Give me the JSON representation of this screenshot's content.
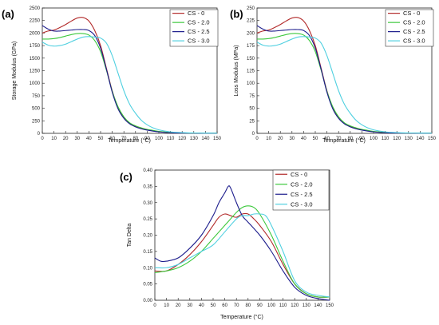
{
  "chart_data": [
    {
      "type": "line",
      "panel_label": "(a)",
      "xlabel": "Temperature (°C)",
      "ylabel": "Storage Modulus (GPa)",
      "xlim": [
        0,
        150
      ],
      "ylim": [
        0,
        2500
      ],
      "xticks": [
        0,
        10,
        20,
        30,
        40,
        50,
        60,
        70,
        80,
        90,
        100,
        110,
        120,
        130,
        140,
        150
      ],
      "yticks": [
        0,
        250,
        500,
        750,
        1000,
        1250,
        1500,
        1750,
        2000,
        2250,
        2500
      ],
      "grid": false,
      "legend": "top-right",
      "series": [
        {
          "name": "CS - 0",
          "color": "#b22a2a",
          "x": [
            0,
            5,
            10,
            15,
            20,
            25,
            30,
            35,
            40,
            45,
            50,
            55,
            60,
            65,
            70,
            75,
            80,
            85,
            90,
            95,
            100,
            110,
            120,
            130,
            140,
            150
          ],
          "y": [
            2000,
            2040,
            2060,
            2110,
            2170,
            2240,
            2300,
            2310,
            2240,
            2050,
            1750,
            1300,
            850,
            520,
            320,
            200,
            140,
            100,
            70,
            50,
            35,
            15,
            8,
            5,
            4,
            3
          ]
        },
        {
          "name": "CS - 2.0",
          "color": "#3cc83c",
          "x": [
            0,
            5,
            10,
            15,
            20,
            25,
            30,
            35,
            40,
            45,
            50,
            55,
            60,
            65,
            70,
            75,
            80,
            85,
            90,
            95,
            100,
            110,
            120,
            130,
            140,
            150
          ],
          "y": [
            1880,
            1880,
            1890,
            1910,
            1940,
            1970,
            1990,
            1990,
            1960,
            1850,
            1630,
            1260,
            840,
            530,
            330,
            210,
            150,
            110,
            80,
            60,
            40,
            18,
            9,
            5,
            4,
            3
          ]
        },
        {
          "name": "CS - 2.5",
          "color": "#1c1c8c",
          "x": [
            0,
            5,
            10,
            15,
            20,
            25,
            30,
            35,
            40,
            45,
            50,
            55,
            60,
            65,
            70,
            75,
            80,
            85,
            90,
            95,
            100,
            110,
            120,
            130,
            140,
            150
          ],
          "y": [
            2150,
            2080,
            2040,
            2040,
            2050,
            2060,
            2070,
            2070,
            2050,
            1950,
            1700,
            1280,
            820,
            490,
            300,
            190,
            130,
            90,
            65,
            45,
            30,
            12,
            6,
            4,
            3,
            2
          ]
        },
        {
          "name": "CS - 3.0",
          "color": "#50d0e0",
          "x": [
            0,
            5,
            10,
            15,
            20,
            25,
            30,
            35,
            40,
            45,
            50,
            55,
            60,
            65,
            70,
            75,
            80,
            85,
            90,
            95,
            100,
            110,
            120,
            130,
            140,
            150
          ],
          "y": [
            1820,
            1760,
            1740,
            1750,
            1780,
            1830,
            1880,
            1920,
            1930,
            1920,
            1900,
            1800,
            1550,
            1200,
            850,
            580,
            400,
            260,
            170,
            110,
            70,
            30,
            15,
            8,
            5,
            4
          ]
        }
      ]
    },
    {
      "type": "line",
      "panel_label": "(b)",
      "xlabel": "Temperature (°C)",
      "ylabel": "Loss Modulus (MPa)",
      "xlim": [
        0,
        150
      ],
      "ylim": [
        0,
        250
      ],
      "xticks": [
        0,
        10,
        20,
        30,
        40,
        50,
        60,
        70,
        80,
        90,
        100,
        110,
        120,
        130,
        140,
        150
      ],
      "yticks": [
        0,
        25,
        50,
        75,
        100,
        125,
        150,
        175,
        200,
        225,
        250
      ],
      "grid": false,
      "legend": "top-right",
      "series": [
        {
          "name": "CS - 0",
          "color": "#b22a2a",
          "x": [
            0,
            5,
            10,
            15,
            20,
            25,
            30,
            35,
            40,
            45,
            50,
            55,
            60,
            65,
            70,
            75,
            80,
            85,
            90,
            95,
            100,
            110,
            120,
            130,
            140,
            150
          ],
          "y": [
            200,
            204,
            206,
            211,
            217,
            224,
            230,
            231,
            224,
            205,
            175,
            130,
            85,
            52,
            32,
            20,
            14,
            10,
            7,
            5,
            3.5,
            1.5,
            0.8,
            0.5,
            0.4,
            0.3
          ]
        },
        {
          "name": "CS - 2.0",
          "color": "#3cc83c",
          "x": [
            0,
            5,
            10,
            15,
            20,
            25,
            30,
            35,
            40,
            45,
            50,
            55,
            60,
            65,
            70,
            75,
            80,
            85,
            90,
            95,
            100,
            110,
            120,
            130,
            140,
            150
          ],
          "y": [
            188,
            188,
            189,
            191,
            194,
            197,
            199,
            199,
            196,
            185,
            163,
            126,
            84,
            53,
            33,
            21,
            15,
            11,
            8,
            6,
            4,
            1.8,
            0.9,
            0.5,
            0.4,
            0.3
          ]
        },
        {
          "name": "CS - 2.5",
          "color": "#1c1c8c",
          "x": [
            0,
            5,
            10,
            15,
            20,
            25,
            30,
            35,
            40,
            45,
            50,
            55,
            60,
            65,
            70,
            75,
            80,
            85,
            90,
            95,
            100,
            110,
            120,
            130,
            140,
            150
          ],
          "y": [
            215,
            208,
            204,
            204,
            205,
            206,
            207,
            207,
            205,
            195,
            170,
            128,
            82,
            49,
            30,
            19,
            13,
            9,
            6.5,
            4.5,
            3,
            1.2,
            0.6,
            0.4,
            0.3,
            0.2
          ]
        },
        {
          "name": "CS - 3.0",
          "color": "#50d0e0",
          "x": [
            0,
            5,
            10,
            15,
            20,
            25,
            30,
            35,
            40,
            45,
            50,
            55,
            60,
            65,
            70,
            75,
            80,
            85,
            90,
            95,
            100,
            110,
            120,
            130,
            140,
            150
          ],
          "y": [
            182,
            176,
            174,
            175,
            178,
            183,
            188,
            192,
            193,
            192,
            190,
            180,
            155,
            120,
            85,
            58,
            40,
            26,
            17,
            11,
            7,
            3,
            1.5,
            0.8,
            0.5,
            0.4
          ]
        }
      ]
    },
    {
      "type": "line",
      "panel_label": "(c)",
      "xlabel": "Temperature (°C)",
      "ylabel": "Tan Delta",
      "xlim": [
        0,
        150
      ],
      "ylim": [
        0,
        0.4
      ],
      "xticks": [
        0,
        10,
        20,
        30,
        40,
        50,
        60,
        70,
        80,
        90,
        100,
        110,
        120,
        130,
        140,
        150
      ],
      "yticks": [
        "0.00",
        "0.05",
        "0.10",
        "0.15",
        "0.20",
        "0.25",
        "0.30",
        "0.35",
        "0.40"
      ],
      "grid": false,
      "legend": "top-right",
      "series": [
        {
          "name": "CS - 0",
          "color": "#b22a2a",
          "x": [
            0,
            10,
            20,
            30,
            40,
            50,
            55,
            60,
            65,
            70,
            75,
            80,
            85,
            90,
            100,
            110,
            120,
            130,
            140,
            150
          ],
          "y": [
            0.09,
            0.09,
            0.11,
            0.14,
            0.18,
            0.23,
            0.255,
            0.265,
            0.26,
            0.255,
            0.265,
            0.265,
            0.25,
            0.23,
            0.18,
            0.11,
            0.05,
            0.02,
            0.01,
            0.01
          ]
        },
        {
          "name": "CS - 2.0",
          "color": "#3cc83c",
          "x": [
            0,
            10,
            20,
            30,
            40,
            50,
            55,
            60,
            65,
            70,
            75,
            80,
            85,
            90,
            100,
            110,
            120,
            130,
            140,
            150
          ],
          "y": [
            0.085,
            0.09,
            0.1,
            0.12,
            0.15,
            0.19,
            0.21,
            0.23,
            0.25,
            0.27,
            0.285,
            0.29,
            0.285,
            0.265,
            0.2,
            0.12,
            0.05,
            0.02,
            0.01,
            0.01
          ]
        },
        {
          "name": "CS - 2.5",
          "color": "#1c1c8c",
          "x": [
            0,
            5,
            10,
            20,
            30,
            40,
            50,
            55,
            60,
            63,
            65,
            70,
            75,
            80,
            90,
            100,
            110,
            120,
            130,
            140,
            150
          ],
          "y": [
            0.13,
            0.12,
            0.12,
            0.13,
            0.16,
            0.2,
            0.26,
            0.3,
            0.33,
            0.35,
            0.345,
            0.3,
            0.26,
            0.24,
            0.2,
            0.15,
            0.09,
            0.04,
            0.015,
            0.005,
            0.0
          ]
        },
        {
          "name": "CS - 3.0",
          "color": "#50d0e0",
          "x": [
            0,
            10,
            20,
            30,
            40,
            50,
            60,
            70,
            75,
            80,
            85,
            90,
            95,
            100,
            110,
            120,
            130,
            140,
            150
          ],
          "y": [
            0.1,
            0.1,
            0.11,
            0.13,
            0.15,
            0.17,
            0.21,
            0.25,
            0.26,
            0.26,
            0.265,
            0.265,
            0.26,
            0.23,
            0.15,
            0.06,
            0.025,
            0.015,
            0.01
          ]
        }
      ]
    }
  ]
}
